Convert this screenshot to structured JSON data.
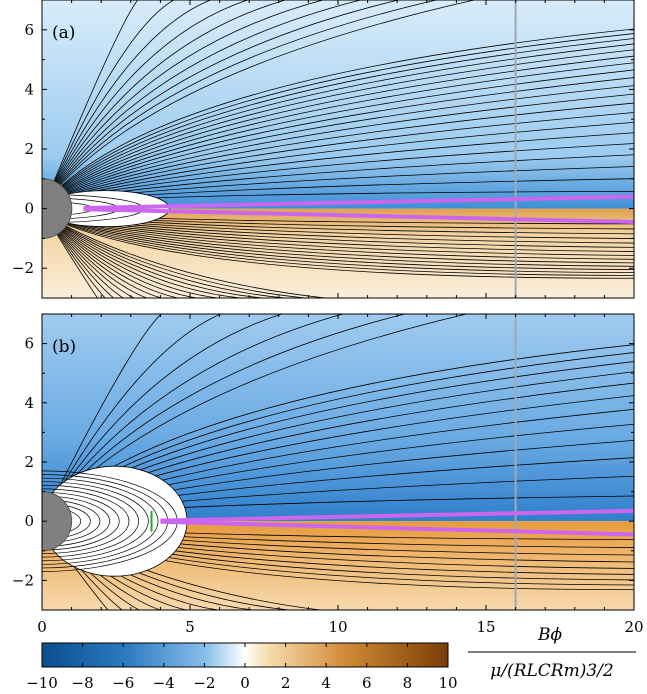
{
  "chart_data": [
    {
      "type": "heatmap",
      "panel_label": "(a)",
      "xlim": [
        0,
        20
      ],
      "ylim": [
        -3,
        7
      ],
      "yticks": [
        -2,
        0,
        2,
        4,
        6
      ],
      "ytick_labels": [
        "−2",
        "0",
        "2",
        "4",
        "6"
      ],
      "vertical_line_x": 16,
      "closed_zone_extent_x": 4.3,
      "current_sheet": {
        "upper_y_at_xmax": 0.4,
        "lower_y_at_xmax": -0.45,
        "start_x": 1.4
      },
      "colors": {
        "sheet": "#cc66ee",
        "vline": "#a0a8b4",
        "star": "#808080"
      }
    },
    {
      "type": "heatmap",
      "panel_label": "(b)",
      "xlim": [
        0,
        20
      ],
      "ylim": [
        -3,
        7
      ],
      "yticks": [
        -2,
        0,
        2,
        4,
        6
      ],
      "ytick_labels": [
        "−2",
        "0",
        "2",
        "4",
        "6"
      ],
      "xticks": [
        0,
        5,
        10,
        15,
        20
      ],
      "xtick_labels": [
        "0",
        "5",
        "10",
        "15",
        "20"
      ],
      "vertical_line_x": 16,
      "closed_zone_extent_x": 4.9,
      "current_sheet": {
        "upper_y_at_xmax": 0.35,
        "lower_y_at_xmax": -0.45,
        "start_x": 4.0
      },
      "colors": {
        "sheet": "#cc66ee",
        "vline": "#a0a8b4",
        "star": "#808080",
        "marker": "#22aa22"
      }
    }
  ],
  "colorbar": {
    "range": [
      -10,
      10
    ],
    "ticks": [
      -10,
      -8,
      -6,
      -4,
      -2,
      0,
      2,
      4,
      6,
      8,
      10
    ],
    "tick_labels": [
      "−10",
      "−8",
      "−6",
      "−4",
      "−2",
      "0",
      "2",
      "4",
      "6",
      "8",
      "10"
    ],
    "label_numerator": "Bϕ",
    "label_denominator": "μ/(RLCRm)3/2",
    "colors": {
      "negative": "#0b4f8e",
      "zero": "#ffffff",
      "positive": "#7a3d08"
    }
  }
}
